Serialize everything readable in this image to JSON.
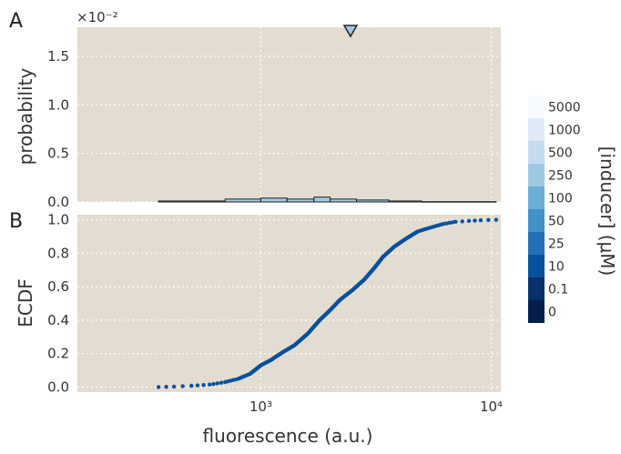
{
  "chart_data": [
    {
      "panel_label": "A",
      "type": "histogram",
      "xscale": "log",
      "xlim": [
        160,
        11000
      ],
      "ylim": [
        0,
        1.8
      ],
      "ylabel": "probability",
      "yticks": [
        0.0,
        0.5,
        1.0,
        1.5
      ],
      "ytick_labels": [
        "0.0",
        "0.5",
        "1.0",
        "1.5"
      ],
      "y_multiplier_label": "×10⁻²",
      "grid": true,
      "bins": [
        {
          "x0": 360,
          "x1": 700,
          "value": 0.01
        },
        {
          "x0": 700,
          "x1": 1000,
          "value": 0.03
        },
        {
          "x0": 1000,
          "x1": 1300,
          "value": 0.04
        },
        {
          "x0": 1300,
          "x1": 1700,
          "value": 0.03
        },
        {
          "x0": 1700,
          "x1": 2000,
          "value": 0.05
        },
        {
          "x0": 2000,
          "x1": 2600,
          "value": 0.03
        },
        {
          "x0": 2600,
          "x1": 3600,
          "value": 0.02
        },
        {
          "x0": 3600,
          "x1": 5000,
          "value": 0.01
        },
        {
          "x0": 5000,
          "x1": 10500,
          "value": 0.003
        }
      ],
      "marker": {
        "shape": "triangle-down",
        "x": 2450,
        "color": "#9ecae1"
      }
    },
    {
      "panel_label": "B",
      "type": "scatter",
      "xscale": "log",
      "xlim": [
        160,
        11000
      ],
      "ylim": [
        -0.03,
        1.03
      ],
      "xlabel": "fluorescence (a.u.)",
      "ylabel": "ECDF",
      "xticks": [
        1000,
        10000
      ],
      "xtick_labels": [
        "10³",
        "10⁴"
      ],
      "yticks": [
        0.0,
        0.2,
        0.4,
        0.6,
        0.8,
        1.0
      ],
      "ytick_labels": [
        "0.0",
        "0.2",
        "0.4",
        "0.6",
        "0.8",
        "1.0"
      ],
      "grid": true,
      "series": [
        {
          "color": "#08519c",
          "curve_points": [
            [
              360,
              0.0
            ],
            [
              420,
              0.003
            ],
            [
              500,
              0.008
            ],
            [
              600,
              0.015
            ],
            [
              700,
              0.03
            ],
            [
              800,
              0.05
            ],
            [
              900,
              0.08
            ],
            [
              1000,
              0.13
            ],
            [
              1100,
              0.16
            ],
            [
              1250,
              0.21
            ],
            [
              1400,
              0.25
            ],
            [
              1600,
              0.32
            ],
            [
              1800,
              0.4
            ],
            [
              2000,
              0.46
            ],
            [
              2200,
              0.52
            ],
            [
              2500,
              0.58
            ],
            [
              2800,
              0.64
            ],
            [
              3100,
              0.71
            ],
            [
              3400,
              0.78
            ],
            [
              3800,
              0.84
            ],
            [
              4300,
              0.89
            ],
            [
              4800,
              0.93
            ],
            [
              5500,
              0.955
            ],
            [
              6200,
              0.975
            ],
            [
              7000,
              0.988
            ],
            [
              8000,
              0.993
            ],
            [
              9000,
              0.997
            ],
            [
              10500,
              1.0
            ]
          ]
        }
      ]
    }
  ],
  "colorbar": {
    "label": "[inducer] (μM)",
    "levels": [
      "5000",
      "1000",
      "500",
      "250",
      "100",
      "50",
      "25",
      "10",
      "0.1",
      "0"
    ],
    "colors": [
      "#f7fbff",
      "#deebf7",
      "#c6dbef",
      "#9ecae1",
      "#6baed6",
      "#4292c6",
      "#2171b5",
      "#08519c",
      "#08306b",
      "#041f4a"
    ]
  },
  "style": {
    "axes_bg": "#e3dcd0",
    "grid_color": "#ffffff",
    "line_color": "#222222"
  }
}
